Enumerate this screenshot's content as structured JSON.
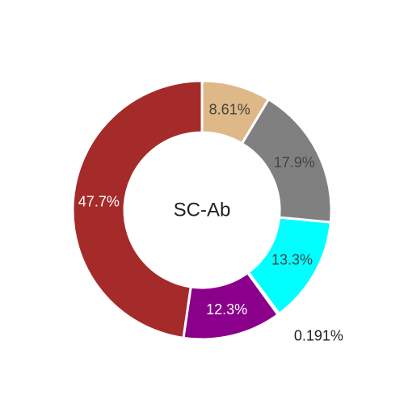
{
  "chart_data": {
    "type": "pie",
    "donut": true,
    "center_label": "SC-Ab",
    "slices": [
      {
        "value": 8.61,
        "label": "8.61%",
        "color": "#deb887",
        "label_color": "#444444"
      },
      {
        "value": 17.9,
        "label": "17.9%",
        "color": "#808080",
        "label_color": "#444444"
      },
      {
        "value": 13.3,
        "label": "13.3%",
        "color": "#00ffff",
        "label_color": "#444444"
      },
      {
        "value": 0.191,
        "label": "0.191%",
        "color": "#d2691e",
        "label_color": "#222222",
        "label_outside": true
      },
      {
        "value": 12.3,
        "label": "12.3%",
        "color": "#8b008b",
        "label_color": "#ffffff"
      },
      {
        "value": 47.7,
        "label": "47.7%",
        "color": "#a52a2a",
        "label_color": "#ffffff"
      }
    ]
  }
}
